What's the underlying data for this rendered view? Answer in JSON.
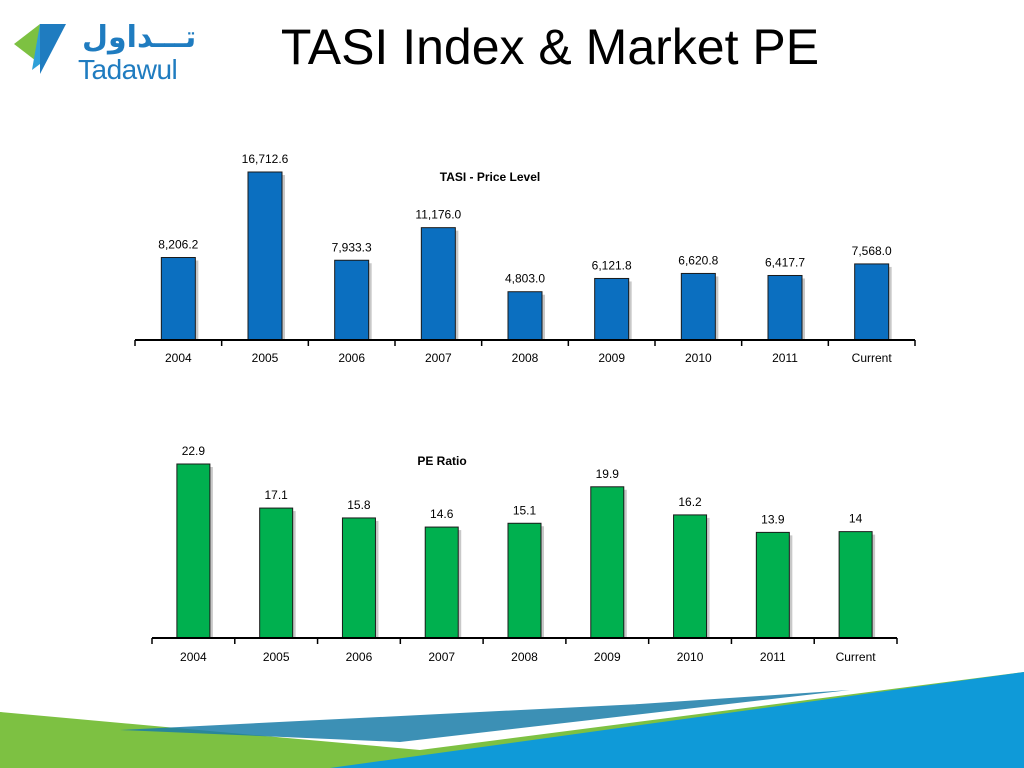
{
  "header": {
    "title": "TASI Index & Market PE",
    "logo_arabic": "تـــداول",
    "logo_english": "Tadawul"
  },
  "colors": {
    "price_bar": "#0b6fc0",
    "pe_bar": "#00b04f",
    "logo_blue": "#1f7cc0",
    "logo_green": "#7dc142",
    "footer_blue": "#0f9ad8",
    "footer_green": "#7dc142"
  },
  "chart_data": [
    {
      "type": "bar",
      "title": "TASI - Price Level",
      "categories": [
        "2004",
        "2005",
        "2006",
        "2007",
        "2008",
        "2009",
        "2010",
        "2011",
        "Current"
      ],
      "values": [
        8206.2,
        16712.6,
        7933.3,
        11176.0,
        4803.0,
        6121.8,
        6620.8,
        6417.7,
        7568.0
      ],
      "value_labels": [
        "8,206.2",
        "16,712.6",
        "7,933.3",
        "11,176.0",
        "4,803.0",
        "6,121.8",
        "6,620.8",
        "6,417.7",
        "7,568.0"
      ],
      "xlabel": "",
      "ylabel": "",
      "ylim": [
        0,
        16712.6
      ],
      "grid": false,
      "bar_color": "#0b6fc0"
    },
    {
      "type": "bar",
      "title": "PE Ratio",
      "categories": [
        "2004",
        "2005",
        "2006",
        "2007",
        "2008",
        "2009",
        "2010",
        "2011",
        "Current"
      ],
      "values": [
        22.9,
        17.1,
        15.8,
        14.6,
        15.1,
        19.9,
        16.2,
        13.9,
        14
      ],
      "value_labels": [
        "22.9",
        "17.1",
        "15.8",
        "14.6",
        "15.1",
        "19.9",
        "16.2",
        "13.9",
        "14"
      ],
      "xlabel": "",
      "ylabel": "",
      "ylim": [
        0,
        22.9
      ],
      "grid": false,
      "bar_color": "#00b04f"
    }
  ]
}
